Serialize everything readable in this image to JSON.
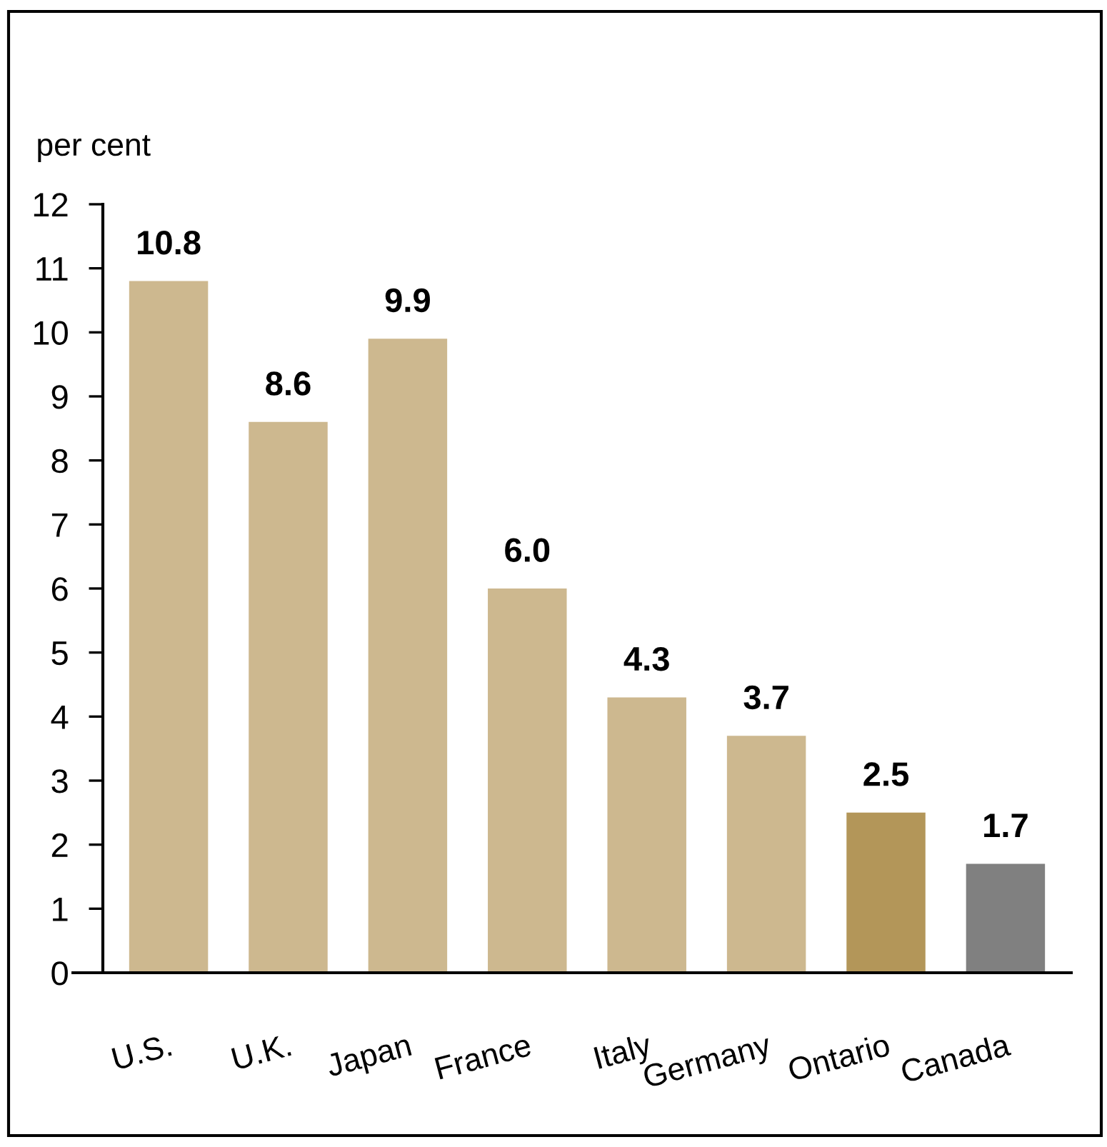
{
  "chart_data": {
    "type": "bar",
    "ylabel": "per cent",
    "categories": [
      "U.S.",
      "U.K.",
      "Japan",
      "France",
      "Italy",
      "Germany",
      "Ontario",
      "Canada"
    ],
    "values": [
      10.8,
      8.6,
      9.9,
      6.0,
      4.3,
      3.7,
      2.5,
      1.7
    ],
    "value_labels": [
      "10.8",
      "8.6",
      "9.9",
      "6.0",
      "4.3",
      "3.7",
      "2.5",
      "1.7"
    ],
    "colors": [
      "#cdb88f",
      "#cdb88f",
      "#cdb88f",
      "#cdb88f",
      "#cdb88f",
      "#cdb88f",
      "#b39659",
      "#808080"
    ],
    "ylim": [
      0,
      12
    ],
    "yticks": [
      0,
      1,
      2,
      3,
      4,
      5,
      6,
      7,
      8,
      9,
      10,
      11,
      12
    ],
    "grid": false,
    "legend": false
  }
}
